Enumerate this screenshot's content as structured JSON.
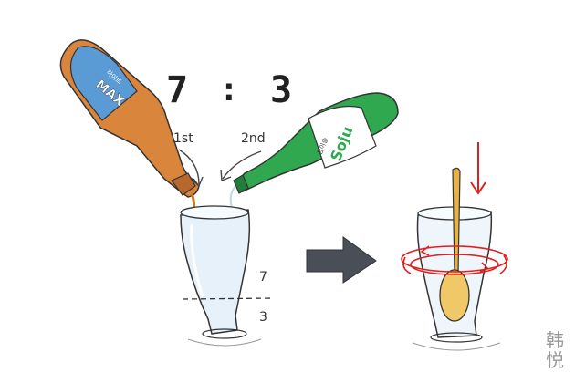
{
  "ratio": {
    "left": "7",
    "sep": ":",
    "right": "3"
  },
  "steps": {
    "first": "1st",
    "second": "2nd"
  },
  "glass_marks": {
    "upper": "7",
    "lower": "3"
  },
  "beer_bottle": {
    "label": "MAX",
    "sub_label": "하이트"
  },
  "soju_bottle": {
    "label": "Soju",
    "sub_label": "참이슬"
  },
  "author": "韩悦",
  "icons": {
    "arrow": "right-arrow-icon",
    "down": "down-arrow-icon",
    "spin": "rotation-icon"
  },
  "colors": {
    "beer_bottle": "#d9853b",
    "beer_label": "#5b9bd5",
    "soju_bottle": "#2fa84f",
    "stir_red": "#e02020",
    "spoon": "#e6b24a",
    "arrow": "#4a4f57"
  }
}
